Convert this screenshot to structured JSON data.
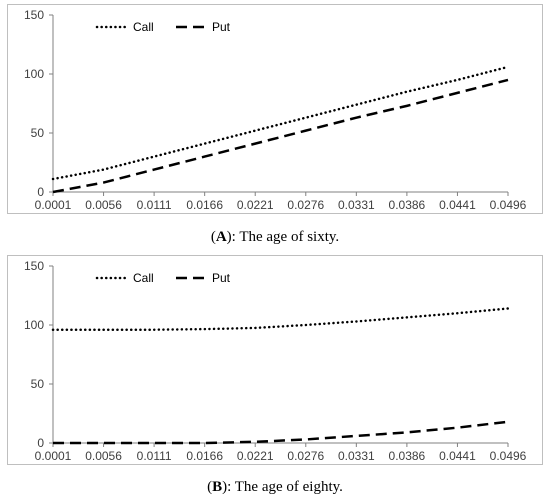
{
  "chart_data": [
    {
      "type": "line",
      "panel": "A",
      "caption_letter": "A",
      "caption_text": ": The age of sixty.",
      "x": [
        "0.0001",
        "0.0056",
        "0.0111",
        "0.0166",
        "0.0221",
        "0.0276",
        "0.0331",
        "0.0386",
        "0.0441",
        "0.0496"
      ],
      "ylim": [
        0,
        150
      ],
      "yticks": [
        0,
        50,
        100,
        150
      ],
      "legend_position": "top-left",
      "series": [
        {
          "name": "Call",
          "style": "dotted",
          "color": "#000000",
          "values": [
            11,
            19,
            30,
            41,
            52,
            63,
            74,
            85,
            95,
            106
          ]
        },
        {
          "name": "Put",
          "style": "dashed",
          "color": "#000000",
          "values": [
            0,
            8,
            19,
            30,
            41,
            52,
            63,
            73,
            84,
            95
          ]
        }
      ]
    },
    {
      "type": "line",
      "panel": "B",
      "caption_letter": "B",
      "caption_text": ": The age of eighty.",
      "x": [
        "0.0001",
        "0.0056",
        "0.0111",
        "0.0166",
        "0.0221",
        "0.0276",
        "0.0331",
        "0.0386",
        "0.0441",
        "0.0496"
      ],
      "ylim": [
        0,
        150
      ],
      "yticks": [
        0,
        50,
        100,
        150
      ],
      "legend_position": "top-left",
      "series": [
        {
          "name": "Call",
          "style": "dotted",
          "color": "#000000",
          "values": [
            96,
            96,
            96,
            96.5,
            97.5,
            100,
            103,
            106.5,
            110,
            114
          ]
        },
        {
          "name": "Put",
          "style": "dashed",
          "color": "#000000",
          "values": [
            0,
            0,
            0,
            0,
            1,
            3,
            6,
            9,
            13,
            18
          ]
        }
      ]
    }
  ]
}
